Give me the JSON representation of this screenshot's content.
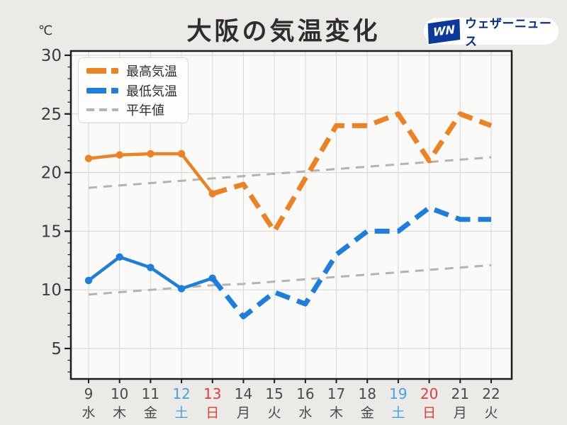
{
  "title": "大阪の気温変化",
  "logo": {
    "badge": "WN",
    "name": "ウェザーニュース"
  },
  "legend": {
    "items": [
      {
        "label": "最高気温"
      },
      {
        "label": "最低気温"
      },
      {
        "label": "平年値"
      }
    ]
  },
  "colors": {
    "figure_bg": "#ECEAE7",
    "plot_bg": "#FAFAF8",
    "grid": "#DBDBD8",
    "axis": "#1C1C1C",
    "tick_text": "#3C3C3C",
    "max_temp": "#ED8222",
    "min_temp": "#1E7EDE",
    "normal_line": "#B5B2AF",
    "weekday_default": "#4A4A4A",
    "saturday": "#45A1E6",
    "sunday": "#E23C3C",
    "logo_blue": "#0C3A9A",
    "logo_text_blue": "#0A2F87"
  },
  "chart_data": {
    "type": "line",
    "title": "大阪の気温変化",
    "ylabel": "℃",
    "ylim": [
      2.5,
      30.5
    ],
    "yticks": [
      5,
      10,
      15,
      20,
      25,
      30
    ],
    "grid": true,
    "legend_position": "upper-left",
    "x_dates": [
      9,
      10,
      11,
      12,
      13,
      14,
      15,
      16,
      17,
      18,
      19,
      20,
      21,
      22
    ],
    "x_weekdays": [
      "水",
      "木",
      "金",
      "土",
      "日",
      "月",
      "火",
      "水",
      "木",
      "金",
      "土",
      "日",
      "月",
      "火"
    ],
    "weekday_types": [
      "weekday",
      "weekday",
      "weekday",
      "saturday",
      "sunday",
      "weekday",
      "weekday",
      "weekday",
      "weekday",
      "weekday",
      "saturday",
      "sunday",
      "weekday",
      "weekday"
    ],
    "observed_last_index": 4,
    "series": [
      {
        "name": "最高気温",
        "color": "#ED8222",
        "line_style": "solid-then-dashed",
        "values": [
          21.2,
          21.5,
          21.6,
          21.6,
          18.2,
          19,
          15,
          19.5,
          24,
          24,
          25,
          21,
          25,
          24
        ]
      },
      {
        "name": "最低気温",
        "color": "#1E7EDE",
        "line_style": "solid-then-dashed",
        "values": [
          10.8,
          12.8,
          11.9,
          10.1,
          11,
          7.7,
          9.8,
          8.8,
          13,
          15,
          15,
          17,
          16,
          16
        ]
      },
      {
        "name": "平年値（最高気温）",
        "color": "#B5B2AF",
        "line_style": "thin-dashed",
        "values": [
          18.7,
          18.9,
          19.1,
          19.3,
          19.5,
          19.7,
          19.9,
          20.1,
          20.3,
          20.5,
          20.7,
          20.9,
          21.1,
          21.3
        ]
      },
      {
        "name": "平年値（最低気温）",
        "color": "#B5B2AF",
        "line_style": "thin-dashed",
        "values": [
          9.6,
          9.8,
          10.0,
          10.2,
          10.4,
          10.5,
          10.7,
          10.9,
          11.1,
          11.3,
          11.5,
          11.7,
          11.9,
          12.1
        ]
      }
    ]
  }
}
